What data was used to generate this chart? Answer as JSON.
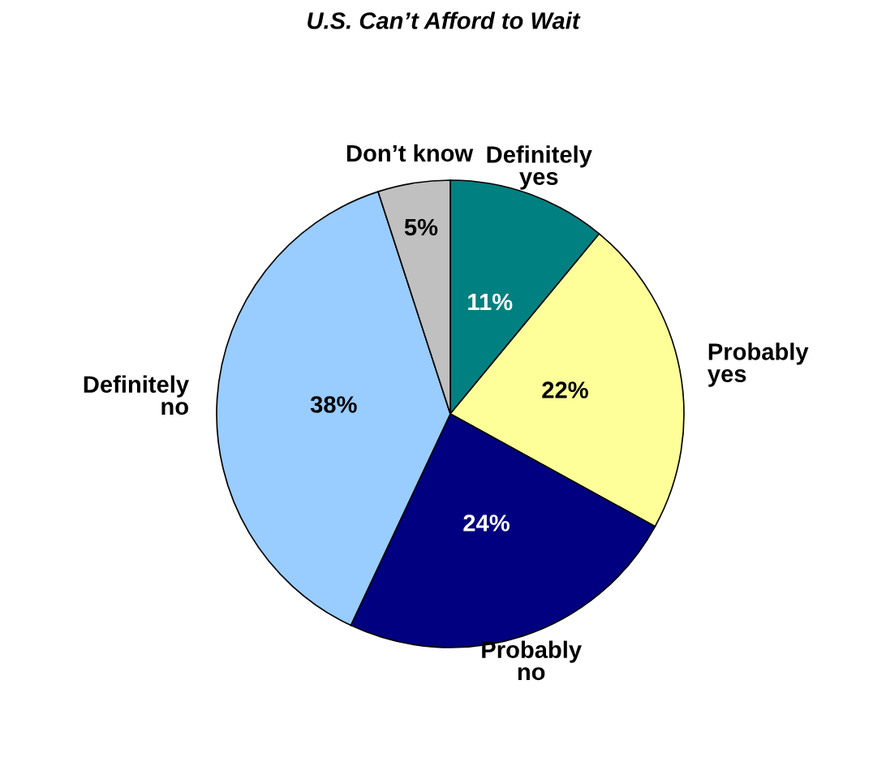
{
  "chart_data": {
    "type": "pie",
    "title": "U.S. Can’t Afford to Wait",
    "categories": [
      "Definitely\nyes",
      "Probably\nyes",
      "Probably\nno",
      "Definitely\nno",
      "Don’t know"
    ],
    "values": [
      11,
      22,
      24,
      38,
      5
    ],
    "colors": [
      "#008080",
      "#ffff99",
      "#000080",
      "#99ccff",
      "#c0c0c0"
    ],
    "value_labels": [
      "11%",
      "22%",
      "24%",
      "38%",
      "5%"
    ],
    "legend": false
  }
}
